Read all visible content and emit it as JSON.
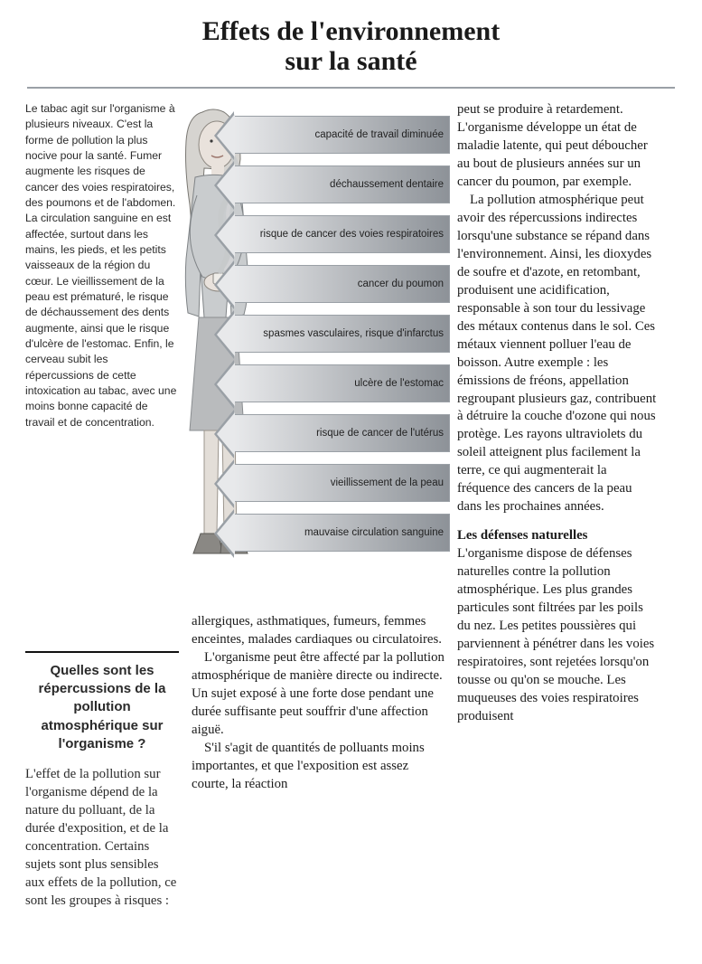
{
  "title_line1": "Effets de l'environnement",
  "title_line2": "sur la santé",
  "title_fontsize": 30,
  "intro_text": "Le tabac agit sur l'organisme à plusieurs niveaux. C'est la forme de pollution la plus nocive pour la santé. Fumer augmente les risques de cancer des voies respiratoires, des poumons et de l'abdomen. La circulation sanguine en est affectée, surtout dans les mains, les pieds, et les petits vaisseaux de la région du cœur. Le vieillissement de la peau est prématuré, le risque de déchaussement des dents augmente, ainsi que le risque d'ulcère de l'estomac. Enfin, le cerveau subit les répercussions de cette intoxication au tabac, avec une moins bonne capacité de travail et de concentration.",
  "subheading": "Quelles sont les répercussions de la pollution atmosphérique sur l'organisme ?",
  "left_para": "L'effet de la pollution sur l'organisme dépend de la nature du polluant, de la durée d'exposition, et de la concentration. Certains sujets sont plus sensibles aux effets de la pollution, ce sont les groupes à risques :",
  "arrows": [
    {
      "label": "capacité de travail diminuée"
    },
    {
      "label": "déchaussement dentaire"
    },
    {
      "label": "risque de cancer des voies respiratoires"
    },
    {
      "label": "cancer du poumon"
    },
    {
      "label": "spasmes vasculaires, risque d'infarctus"
    },
    {
      "label": "ulcère de l'estomac"
    },
    {
      "label": "risque de cancer de l'utérus"
    },
    {
      "label": "vieillissement de la peau"
    },
    {
      "label": "mauvaise circulation sanguine"
    }
  ],
  "arrow_gradient_from": "#e8e9eb",
  "arrow_gradient_to": "#8d9298",
  "arrow_border_color": "#9aa0a6",
  "mid_paras": [
    "allergiques, asthmatiques, fumeurs, femmes enceintes, malades cardiaques ou circulatoires.",
    "L'organisme peut être affecté par la pollution atmosphérique de manière directe ou indirecte. Un sujet exposé à une forte dose pendant une durée suffisante peut souffrir d'une affection aiguë.",
    "S'il s'agit de quantités de polluants moins importantes, et que l'exposition est assez courte, la réaction"
  ],
  "right_paras_a": [
    "peut se produire à retardement. L'organisme développe un état de maladie latente, qui peut déboucher au bout de plusieurs années sur un cancer du poumon, par exemple.",
    "La pollution atmosphérique peut avoir des répercussions indirectes lorsqu'une substance se répand dans l'environnement. Ainsi, les dioxydes de soufre et d'azote, en retombant, produisent une acidification, responsable à son tour du lessivage des métaux contenus dans le sol. Ces métaux viennent polluer l'eau de boisson. Autre exemple : les émissions de fréons, appellation regroupant plusieurs gaz, contribuent à détruire la couche d'ozone qui nous protège. Les rayons ultraviolets du soleil atteignent plus facilement la terre, ce qui augmenterait la fréquence des cancers de la peau dans les prochaines années."
  ],
  "right_section_head": "Les défenses naturelles",
  "right_paras_b": [
    "L'organisme dispose de défenses naturelles contre la pollution atmosphérique. Les plus grandes particules sont filtrées par les poils du nez. Les petites poussières qui parviennent à pénétrer dans les voies respiratoires, sont rejetées lorsqu'on tousse ou qu'on se mouche. Les muqueuses des voies respiratoires produisent"
  ],
  "figure_colors": {
    "skin": "#e9e2dc",
    "hair": "#d6d4d0",
    "jacket": "#c9ccce",
    "skirt": "#b9bbbd",
    "shoes": "#8a8884",
    "outline": "#4b4d50",
    "smoke": "#c7c9cb"
  }
}
